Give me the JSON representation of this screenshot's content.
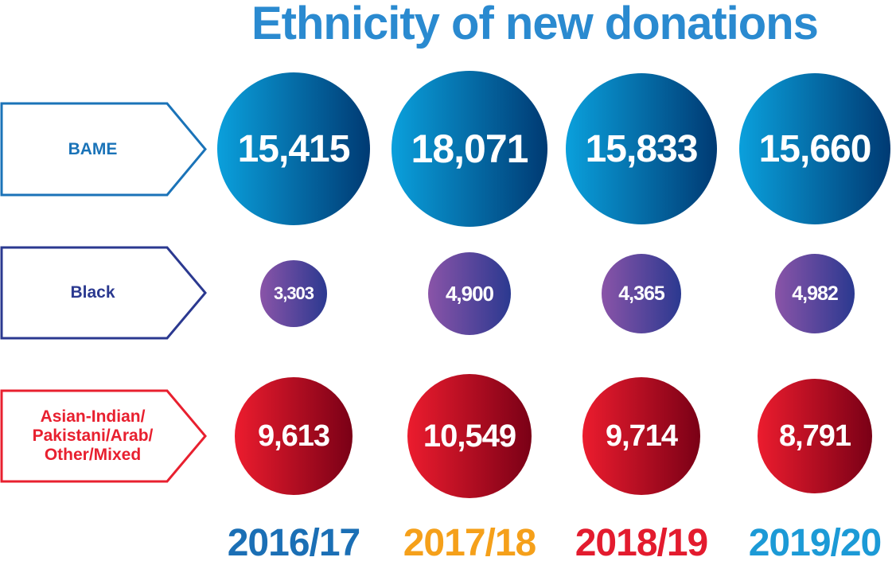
{
  "chart_data": {
    "type": "bubble",
    "title": "Ethnicity of new donations",
    "categories": [
      "2016/17",
      "2017/18",
      "2018/19",
      "2019/20"
    ],
    "category_colors": [
      "#1b6fb5",
      "#f5a01a",
      "#e31b2e",
      "#1c9ad6"
    ],
    "series": [
      {
        "name": "BAME",
        "values": [
          15415,
          18071,
          15833,
          15660
        ],
        "labels": [
          "15,415",
          "18,071",
          "15,833",
          "15,660"
        ],
        "color_from": "#0aa0dc",
        "color_to": "#003a73",
        "label_color": "#1a73b8"
      },
      {
        "name": "Black",
        "values": [
          3303,
          4900,
          4365,
          4982
        ],
        "labels": [
          "3,303",
          "4,900",
          "4,365",
          "4,982"
        ],
        "color_from": "#8a54a8",
        "color_to": "#2b3990",
        "label_color": "#2b3990"
      },
      {
        "name": "Asian-Indian/ Pakistani/Arab/ Other/Mixed",
        "values": [
          9613,
          10549,
          9714,
          8791
        ],
        "labels": [
          "9,613",
          "10,549",
          "9,714",
          "8,791"
        ],
        "color_from": "#ec1c2e",
        "color_to": "#7a0016",
        "label_color": "#e8202f"
      }
    ]
  }
}
